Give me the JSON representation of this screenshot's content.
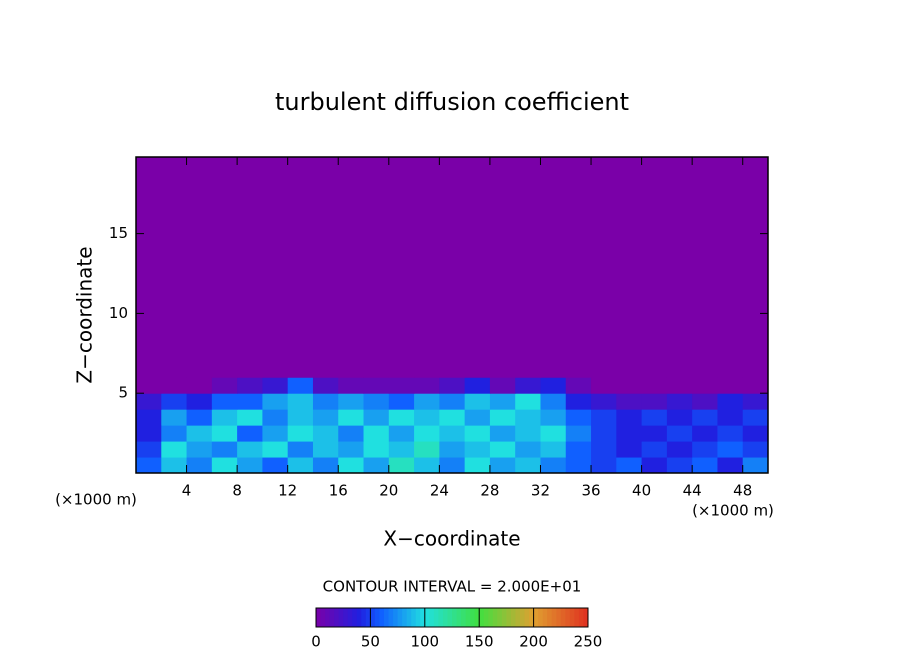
{
  "chart_data": {
    "type": "heatmap",
    "title": "turbulent diffusion coefficient",
    "x_label": "X−coordinate",
    "y_label": "Z−coordinate",
    "x_unit": "(×1000 m)",
    "y_unit": "(×1000 m)",
    "annotation": "CONTOUR INTERVAL = 2.000E+01",
    "xlim": [
      0,
      50
    ],
    "ylim": [
      0,
      19.8
    ],
    "xticks": [
      4,
      8,
      12,
      16,
      20,
      24,
      28,
      32,
      36,
      40,
      44,
      48
    ],
    "yticks": [
      5,
      10,
      15
    ],
    "x_edges": [
      0,
      2,
      4,
      6,
      8,
      10,
      12,
      14,
      16,
      18,
      20,
      22,
      24,
      26,
      28,
      30,
      32,
      34,
      36,
      38,
      40,
      42,
      44,
      46,
      48,
      50
    ],
    "y_edges": [
      0,
      1,
      2,
      3,
      4,
      5,
      6,
      19.8
    ],
    "z": [
      [
        60,
        90,
        70,
        100,
        80,
        60,
        90,
        70,
        100,
        80,
        110,
        90,
        70,
        100,
        80,
        90,
        70,
        60,
        50,
        60,
        40,
        50,
        60,
        40,
        70
      ],
      [
        50,
        100,
        80,
        70,
        90,
        100,
        70,
        90,
        80,
        100,
        90,
        110,
        80,
        90,
        100,
        80,
        90,
        60,
        50,
        40,
        50,
        40,
        50,
        60,
        50
      ],
      [
        40,
        70,
        90,
        100,
        60,
        80,
        100,
        90,
        70,
        100,
        80,
        100,
        90,
        100,
        80,
        90,
        100,
        70,
        50,
        40,
        40,
        50,
        40,
        50,
        40
      ],
      [
        40,
        80,
        60,
        90,
        100,
        70,
        90,
        80,
        100,
        80,
        100,
        90,
        100,
        80,
        100,
        90,
        80,
        60,
        50,
        40,
        50,
        40,
        50,
        40,
        50
      ],
      [
        30,
        50,
        40,
        60,
        60,
        80,
        90,
        70,
        80,
        70,
        60,
        80,
        70,
        90,
        80,
        100,
        70,
        40,
        30,
        20,
        20,
        30,
        20,
        40,
        30
      ],
      [
        0,
        0,
        0,
        10,
        20,
        30,
        60,
        20,
        10,
        10,
        10,
        10,
        20,
        40,
        10,
        30,
        40,
        10,
        0,
        0,
        0,
        0,
        0,
        0,
        0
      ],
      [
        0,
        0,
        0,
        0,
        0,
        0,
        0,
        0,
        0,
        0,
        0,
        0,
        0,
        0,
        0,
        0,
        0,
        0,
        0,
        0,
        0,
        0,
        0,
        0,
        0
      ]
    ],
    "colorscale": [
      {
        "value": 0,
        "color": "#7a00a8"
      },
      {
        "value": 40,
        "color": "#2020e0"
      },
      {
        "value": 60,
        "color": "#1060ff"
      },
      {
        "value": 100,
        "color": "#20e0e0"
      },
      {
        "value": 150,
        "color": "#40e040"
      },
      {
        "value": 200,
        "color": "#e0a030"
      },
      {
        "value": 250,
        "color": "#e03020"
      }
    ],
    "colorbar": {
      "lim": [
        0,
        250
      ],
      "ticks": [
        0,
        50,
        100,
        150,
        200,
        250
      ]
    }
  }
}
